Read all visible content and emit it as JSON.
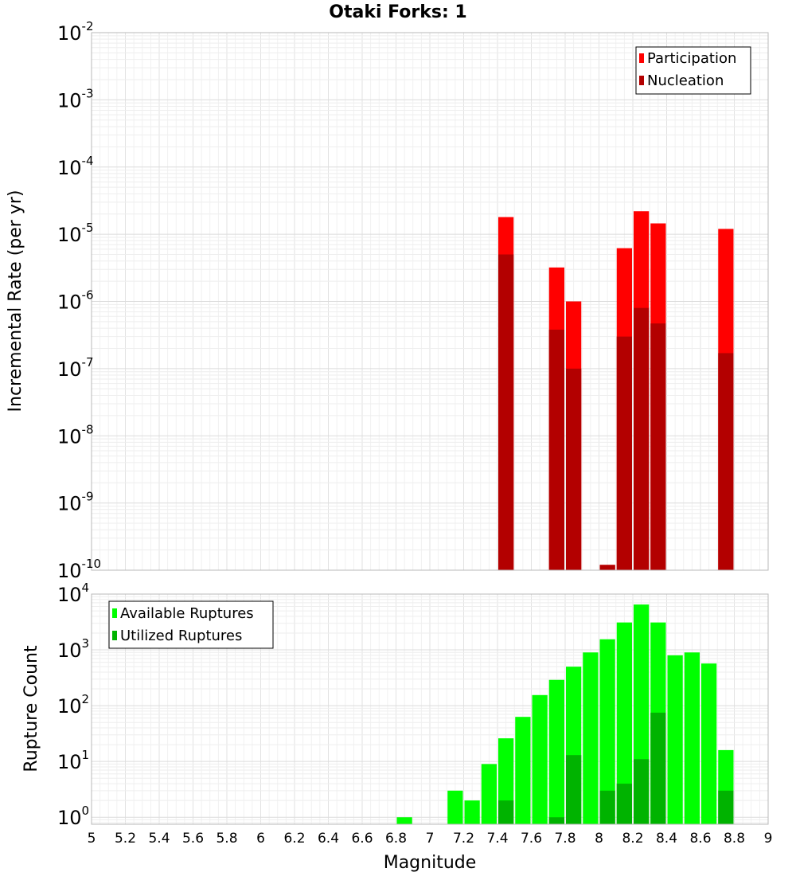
{
  "chart_data": [
    {
      "type": "bar",
      "title": "Otaki Forks: 1",
      "xlabel": "Magnitude",
      "ylabel": "Incremental Rate (per yr)",
      "yscale": "log",
      "xlim": [
        5,
        9
      ],
      "ylim": [
        1e-10,
        0.01
      ],
      "ytick_base": "10",
      "ytick_exponents": [
        "-10",
        "-9",
        "-8",
        "-7",
        "-6",
        "-5",
        "-4",
        "-3",
        "-2"
      ],
      "legend": [
        "Participation",
        "Nucleation"
      ],
      "legend_position": "top-right",
      "series": [
        {
          "name": "Participation",
          "color": "#ff0000",
          "x": [
            7.45,
            7.75,
            7.85,
            8.05,
            8.15,
            8.25,
            8.35,
            8.75
          ],
          "values": [
            1.8e-05,
            3.2e-06,
            1e-06,
            1.2e-10,
            6.2e-06,
            2.2e-05,
            1.45e-05,
            1.2e-05
          ]
        },
        {
          "name": "Nucleation",
          "color": "#b30000",
          "x": [
            7.45,
            7.75,
            7.85,
            8.05,
            8.15,
            8.25,
            8.35,
            8.75
          ],
          "values": [
            5e-06,
            3.8e-07,
            1e-07,
            1.2e-10,
            3e-07,
            8e-07,
            4.7e-07,
            1.7e-07
          ]
        }
      ]
    },
    {
      "type": "bar",
      "title": "",
      "xlabel": "Magnitude",
      "ylabel": "Rupture Count",
      "yscale": "log",
      "xlim": [
        5,
        9
      ],
      "ylim": [
        0.75,
        10000
      ],
      "ytick_base": "10",
      "ytick_exponents": [
        "0",
        "1",
        "2",
        "3",
        "4"
      ],
      "xticks": [
        "5",
        "5.2",
        "5.4",
        "5.6",
        "5.8",
        "6",
        "6.2",
        "6.4",
        "6.6",
        "6.8",
        "7",
        "7.2",
        "7.4",
        "7.6",
        "7.8",
        "8",
        "8.2",
        "8.4",
        "8.6",
        "8.8",
        "9"
      ],
      "legend": [
        "Available Ruptures",
        "Utilized Ruptures"
      ],
      "legend_position": "top-left",
      "series": [
        {
          "name": "Available Ruptures",
          "color": "#00ff00",
          "x": [
            6.85,
            7.15,
            7.25,
            7.35,
            7.45,
            7.55,
            7.65,
            7.75,
            7.85,
            7.95,
            8.05,
            8.15,
            8.25,
            8.35,
            8.45,
            8.55,
            8.65,
            8.75
          ],
          "values": [
            1,
            3,
            2,
            9,
            26,
            63,
            155,
            290,
            500,
            900,
            1550,
            3100,
            6500,
            3100,
            800,
            900,
            570,
            16
          ]
        },
        {
          "name": "Utilized Ruptures",
          "color": "#00b300",
          "x": [
            7.45,
            7.75,
            7.85,
            8.05,
            8.15,
            8.25,
            8.35,
            8.75
          ],
          "values": [
            2,
            1,
            13,
            3,
            4,
            11,
            75,
            3
          ]
        }
      ]
    }
  ]
}
